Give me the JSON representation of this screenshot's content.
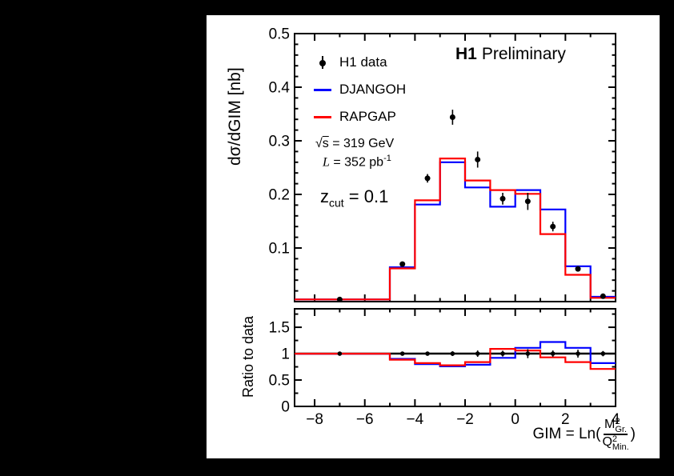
{
  "window": {
    "background": "#000000",
    "canvas_background": "#ffffff",
    "frame_color": "#000000"
  },
  "chart_text": {
    "experiment_bold": "H1",
    "experiment_rest": "Preliminary",
    "main_y_title": "dσ/dGIM [nb]",
    "ratio_y_title": "Ratio to data",
    "x_title": {
      "prefix": "GIM = Ln(",
      "num_base": "M",
      "num_sup": "2",
      "num_sub": "Gr.",
      "den_base": "Q",
      "den_sup": "2",
      "den_sub": "Min.",
      "suffix": ")"
    },
    "energy": {
      "sqrt_sym": "√",
      "sqrt_arg": "s",
      "rest": " = 319 GeV"
    },
    "luminosity": {
      "label": "L",
      "rest": " = 352 pb",
      "sup": "-1"
    },
    "zcut": {
      "base": "z",
      "sub": "cut",
      "rest": " = 0.1"
    }
  },
  "legend": {
    "items": [
      {
        "label": "H1 data",
        "marker": "point-with-error-bar",
        "color": "#000000"
      },
      {
        "label": "DJANGOH",
        "marker": "line",
        "color": "#0000ff"
      },
      {
        "label": "RAPGAP",
        "marker": "line",
        "color": "#ff0000"
      }
    ]
  },
  "chart_data": [
    {
      "name": "main-panel",
      "type": "line",
      "title": "H1 Preliminary",
      "ylabel": "dσ/dGIM [nb]",
      "xlabel": "GIM = Ln(M²_Gr. / Q²_Min.)",
      "xlim": [
        -8.8,
        4
      ],
      "ylim": [
        0,
        0.5
      ],
      "grid": false,
      "legend_position": "top-left",
      "x_major_ticks": [
        -8,
        -6,
        -4,
        -2,
        0,
        2,
        4
      ],
      "x_minor_ticks": [
        -7,
        -5,
        -3,
        -1,
        1,
        3
      ],
      "y_major_ticks": [
        0.1,
        0.2,
        0.3,
        0.4,
        0.5
      ],
      "y_tick_labels": [
        "0.1",
        "0.2",
        "0.3",
        "0.4",
        "0.5"
      ],
      "bin_edges": [
        -8.8,
        -5,
        -4,
        -3,
        -2,
        -1,
        0,
        1,
        2,
        3,
        4
      ],
      "series": [
        {
          "name": "H1 data",
          "style": "points",
          "color": "#000000",
          "x": [
            -7,
            -4.5,
            -3.5,
            -2.5,
            -1.5,
            -0.5,
            0.5,
            1.5,
            2.5,
            3.5
          ],
          "y": [
            0.004,
            0.07,
            0.23,
            0.344,
            0.265,
            0.192,
            0.187,
            0.14,
            0.061,
            0.01
          ],
          "yerr": [
            0.001,
            0.003,
            0.008,
            0.014,
            0.015,
            0.011,
            0.016,
            0.009,
            0.005,
            0.002
          ]
        },
        {
          "name": "DJANGOH",
          "style": "step-histogram",
          "color": "#0000ff",
          "values": [
            0.004,
            0.064,
            0.181,
            0.26,
            0.213,
            0.177,
            0.208,
            0.172,
            0.066,
            0.009
          ]
        },
        {
          "name": "RAPGAP",
          "style": "step-histogram",
          "color": "#ff0000",
          "values": [
            0.004,
            0.062,
            0.189,
            0.267,
            0.226,
            0.208,
            0.201,
            0.126,
            0.05,
            0.007
          ]
        }
      ],
      "annotations": [
        "√s = 319 GeV",
        "L = 352 pb⁻¹",
        "z_cut = 0.1",
        "H1 Preliminary"
      ]
    },
    {
      "name": "ratio-panel",
      "type": "line",
      "ylabel": "Ratio to data",
      "xlim": [
        -8.8,
        4
      ],
      "ylim": [
        0,
        1.85
      ],
      "grid": false,
      "reference_line": 1.0,
      "x_major_ticks": [
        -8,
        -6,
        -4,
        -2,
        0,
        2,
        4
      ],
      "x_minor_ticks": [
        -7,
        -5,
        -3,
        -1,
        1,
        3
      ],
      "x_tick_labels": [
        "−8",
        "−6",
        "−4",
        "−2",
        "0",
        "2",
        "4"
      ],
      "y_major_ticks": [
        0,
        0.5,
        1,
        1.5
      ],
      "y_minor_ticks": [
        0.25,
        0.75,
        1.25,
        1.75
      ],
      "y_tick_labels": [
        "0",
        "0.5",
        "1",
        "1.5"
      ],
      "bin_edges": [
        -8.8,
        -5,
        -4,
        -3,
        -2,
        -1,
        0,
        1,
        2,
        3,
        4
      ],
      "series": [
        {
          "name": "H1 data ratio",
          "style": "points",
          "color": "#000000",
          "x": [
            -7,
            -4.5,
            -3.5,
            -2.5,
            -1.5,
            -0.5,
            0.5,
            1.5,
            2.5,
            3.5
          ],
          "y": [
            1,
            1,
            1,
            1,
            1,
            1,
            1,
            1,
            1,
            1
          ],
          "yerr": [
            0.03,
            0.035,
            0.035,
            0.045,
            0.06,
            0.055,
            0.085,
            0.06,
            0.075,
            0.05
          ]
        },
        {
          "name": "DJANGOH ratio",
          "style": "step-histogram",
          "color": "#0000ff",
          "values": [
            1.0,
            0.9,
            0.8,
            0.76,
            0.79,
            0.92,
            1.11,
            1.22,
            1.11,
            0.82
          ]
        },
        {
          "name": "RAPGAP ratio",
          "style": "step-histogram",
          "color": "#ff0000",
          "values": [
            1.0,
            0.885,
            0.82,
            0.78,
            0.84,
            1.09,
            1.06,
            0.93,
            0.84,
            0.71
          ]
        }
      ]
    }
  ]
}
